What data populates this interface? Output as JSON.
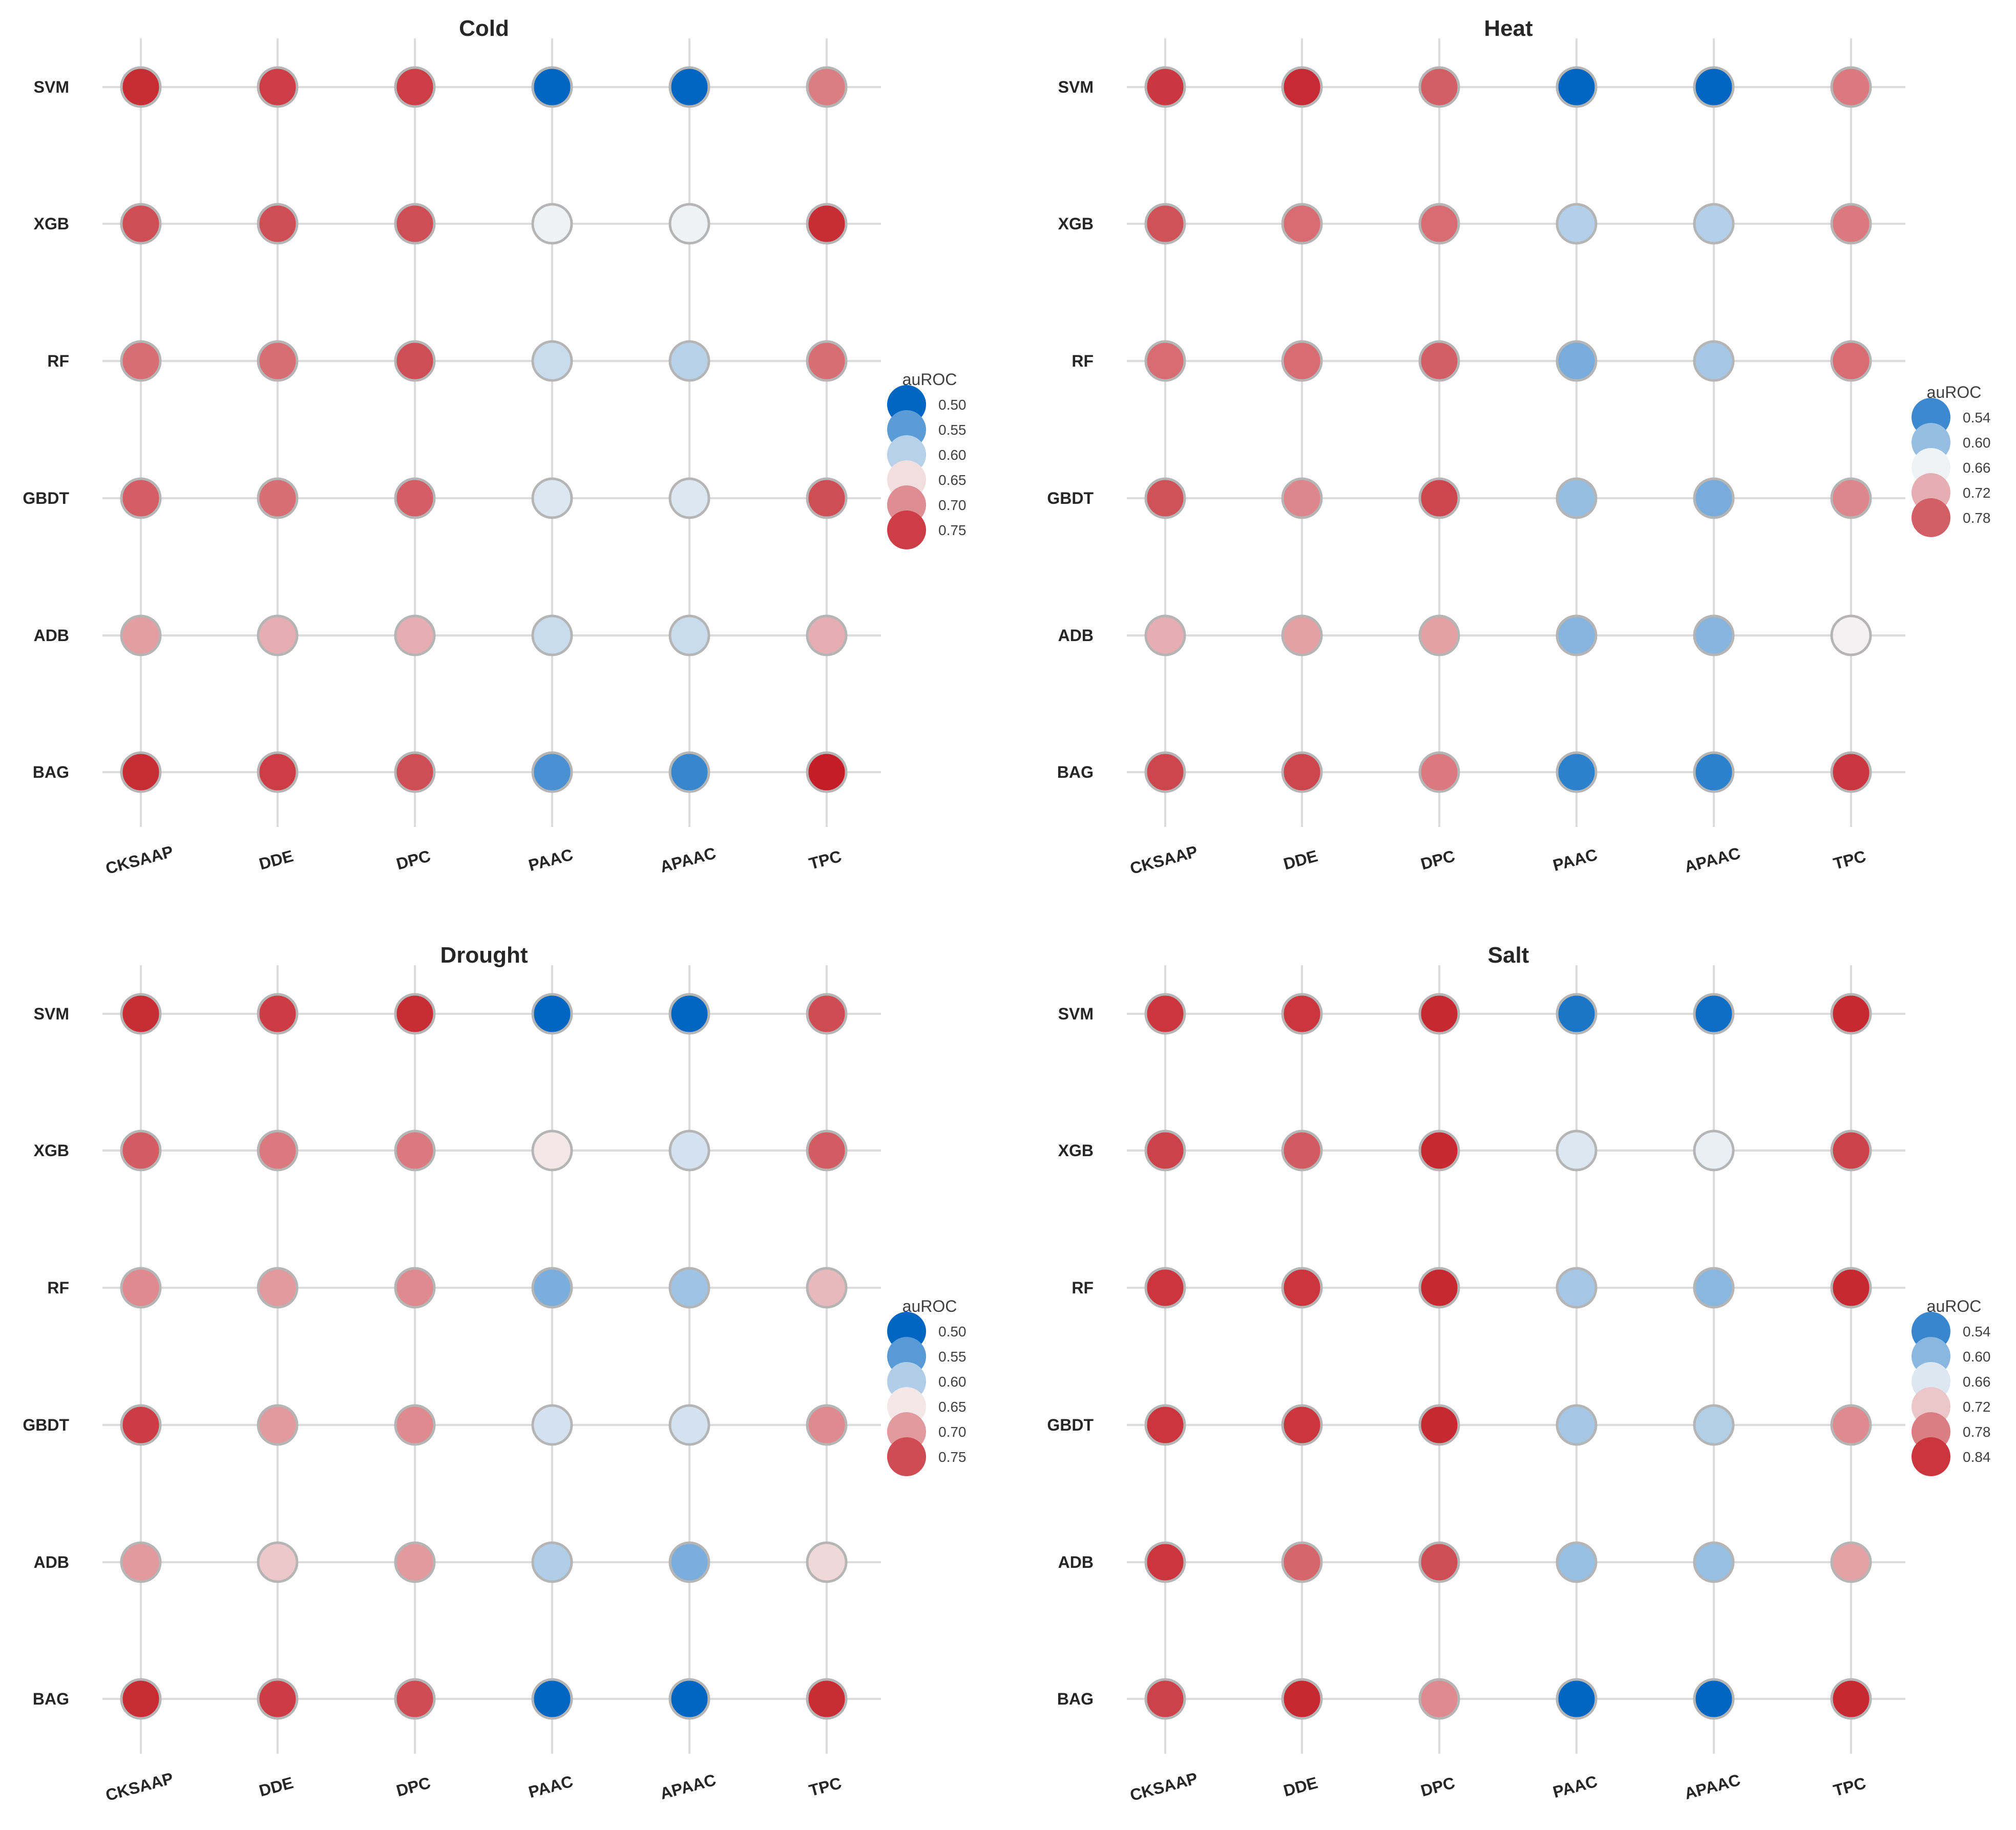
{
  "chart_data": [
    {
      "type": "scatter",
      "title": "Cold",
      "xlabel": "",
      "ylabel": "",
      "categories_x": [
        "CKSAAP",
        "DDE",
        "DPC",
        "PAAC",
        "APAAC",
        "TPC"
      ],
      "categories_y": [
        "SVM",
        "XGB",
        "RF",
        "GBDT",
        "ADB",
        "BAG"
      ],
      "values": [
        [
          0.76,
          0.75,
          0.75,
          0.5,
          0.5,
          0.71
        ],
        [
          0.74,
          0.74,
          0.74,
          0.63,
          0.63,
          0.76
        ],
        [
          0.72,
          0.72,
          0.74,
          0.61,
          0.6,
          0.72
        ],
        [
          0.73,
          0.72,
          0.73,
          0.62,
          0.62,
          0.74
        ],
        [
          0.69,
          0.68,
          0.68,
          0.61,
          0.61,
          0.68
        ],
        [
          0.76,
          0.75,
          0.74,
          0.54,
          0.53,
          0.77
        ]
      ],
      "legend": {
        "title": "auROC",
        "ticks": [
          0.5,
          0.55,
          0.6,
          0.65,
          0.7,
          0.75
        ],
        "placement": "right"
      },
      "color_range": [
        0.5,
        0.77
      ],
      "grid": true
    },
    {
      "type": "scatter",
      "title": "Heat",
      "xlabel": "",
      "ylabel": "",
      "categories_x": [
        "CKSAAP",
        "DDE",
        "DPC",
        "PAAC",
        "APAAC",
        "TPC"
      ],
      "categories_y": [
        "SVM",
        "XGB",
        "RF",
        "GBDT",
        "ADB",
        "BAG"
      ],
      "values": [
        [
          0.81,
          0.82,
          0.78,
          0.5,
          0.5,
          0.76
        ],
        [
          0.79,
          0.77,
          0.77,
          0.62,
          0.62,
          0.76
        ],
        [
          0.77,
          0.77,
          0.78,
          0.58,
          0.61,
          0.77
        ],
        [
          0.79,
          0.75,
          0.8,
          0.6,
          0.58,
          0.75
        ],
        [
          0.72,
          0.73,
          0.73,
          0.59,
          0.59,
          0.67
        ],
        [
          0.8,
          0.8,
          0.76,
          0.53,
          0.53,
          0.81
        ]
      ],
      "legend": {
        "title": "auROC",
        "ticks": [
          0.54,
          0.6,
          0.66,
          0.72,
          0.78
        ],
        "placement": "right"
      },
      "color_range": [
        0.5,
        0.83
      ],
      "grid": true
    },
    {
      "type": "scatter",
      "title": "Drought",
      "xlabel": "",
      "ylabel": "",
      "categories_x": [
        "CKSAAP",
        "DDE",
        "DPC",
        "PAAC",
        "APAAC",
        "TPC"
      ],
      "categories_y": [
        "SVM",
        "XGB",
        "RF",
        "GBDT",
        "ADB",
        "BAG"
      ],
      "values": [
        [
          0.77,
          0.76,
          0.77,
          0.5,
          0.5,
          0.75
        ],
        [
          0.74,
          0.72,
          0.72,
          0.65,
          0.62,
          0.74
        ],
        [
          0.71,
          0.7,
          0.71,
          0.57,
          0.59,
          0.68
        ],
        [
          0.76,
          0.7,
          0.71,
          0.62,
          0.62,
          0.71
        ],
        [
          0.7,
          0.67,
          0.7,
          0.6,
          0.57,
          0.66
        ],
        [
          0.77,
          0.76,
          0.75,
          0.5,
          0.5,
          0.77
        ]
      ],
      "legend": {
        "title": "auROC",
        "ticks": [
          0.5,
          0.55,
          0.6,
          0.65,
          0.7,
          0.75
        ],
        "placement": "right"
      },
      "color_range": [
        0.5,
        0.78
      ],
      "grid": true
    },
    {
      "type": "scatter",
      "title": "Salt",
      "xlabel": "",
      "ylabel": "",
      "categories_x": [
        "CKSAAP",
        "DDE",
        "DPC",
        "PAAC",
        "APAAC",
        "TPC"
      ],
      "categories_y": [
        "SVM",
        "XGB",
        "RF",
        "GBDT",
        "ADB",
        "BAG"
      ],
      "values": [
        [
          0.84,
          0.84,
          0.85,
          0.52,
          0.51,
          0.85
        ],
        [
          0.83,
          0.81,
          0.85,
          0.66,
          0.67,
          0.83
        ],
        [
          0.84,
          0.84,
          0.85,
          0.62,
          0.6,
          0.85
        ],
        [
          0.84,
          0.84,
          0.85,
          0.62,
          0.63,
          0.77
        ],
        [
          0.84,
          0.8,
          0.82,
          0.61,
          0.61,
          0.75
        ],
        [
          0.83,
          0.85,
          0.77,
          0.5,
          0.5,
          0.85
        ]
      ],
      "legend": {
        "title": "auROC",
        "ticks": [
          0.54,
          0.6,
          0.66,
          0.72,
          0.78,
          0.84
        ],
        "placement": "right"
      },
      "color_range": [
        0.5,
        0.86
      ],
      "grid": true
    }
  ],
  "colors": {
    "low": "#0066c2",
    "mid": "#f7f7f7",
    "high": "#c41d27",
    "marker_edge": "#b5b5b5",
    "grid": "#dcdcdc"
  }
}
